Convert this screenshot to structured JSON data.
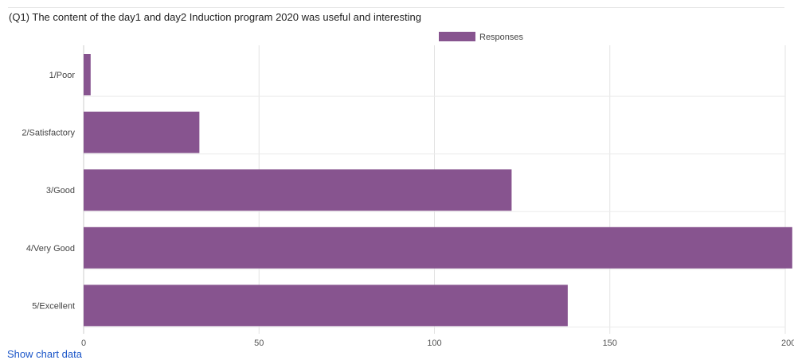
{
  "chart_data": {
    "type": "bar",
    "orientation": "horizontal",
    "title": "(Q1) The content of the day1 and day2 Induction program 2020 was useful and interesting",
    "categories": [
      "1/Poor",
      "2/Satisfactory",
      "3/Good",
      "4/Very Good",
      "5/Excellent"
    ],
    "series": [
      {
        "name": "Responses",
        "values": [
          2,
          33,
          122,
          202,
          138
        ],
        "color": "#87548f"
      }
    ],
    "xlim": [
      0,
      200
    ],
    "xticks": [
      0,
      50,
      100,
      150,
      200
    ],
    "grid": true,
    "legend": "top-center"
  },
  "footer": {
    "show_data_link": "Show chart data"
  }
}
